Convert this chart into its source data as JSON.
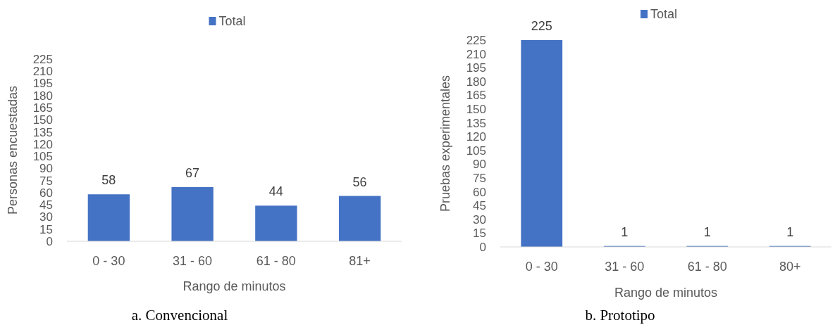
{
  "chart_data": [
    {
      "type": "bar",
      "categories": [
        "0 - 30",
        "31 - 60",
        "61 - 80",
        "81+"
      ],
      "series": [
        {
          "name": "Total",
          "color": "#4472c4",
          "values": [
            58,
            67,
            44,
            56
          ]
        }
      ],
      "ylim": [
        0,
        225
      ],
      "yticks": [
        0,
        15,
        30,
        45,
        60,
        75,
        90,
        105,
        120,
        135,
        150,
        165,
        180,
        195,
        210,
        225
      ],
      "ylabel": "Personas encuestadas",
      "xlabel": "Rango de minutos",
      "data_labels": true,
      "legend": "top",
      "grid": false,
      "annotations": [
        "a. Convencional"
      ]
    },
    {
      "type": "bar",
      "categories": [
        "0 - 30",
        "31 - 60",
        "61 - 80",
        "80+"
      ],
      "series": [
        {
          "name": "Total",
          "color": "#4472c4",
          "values": [
            225,
            1,
            1,
            1
          ]
        }
      ],
      "ylim": [
        0,
        225
      ],
      "yticks": [
        0,
        15,
        30,
        45,
        60,
        75,
        90,
        105,
        120,
        135,
        150,
        165,
        180,
        195,
        210,
        225
      ],
      "ylabel": "Pruebas experimentales",
      "xlabel": "Rango de minutos",
      "data_labels": true,
      "legend": "top",
      "grid": false,
      "annotations": [
        "b. Prototipo"
      ]
    }
  ]
}
